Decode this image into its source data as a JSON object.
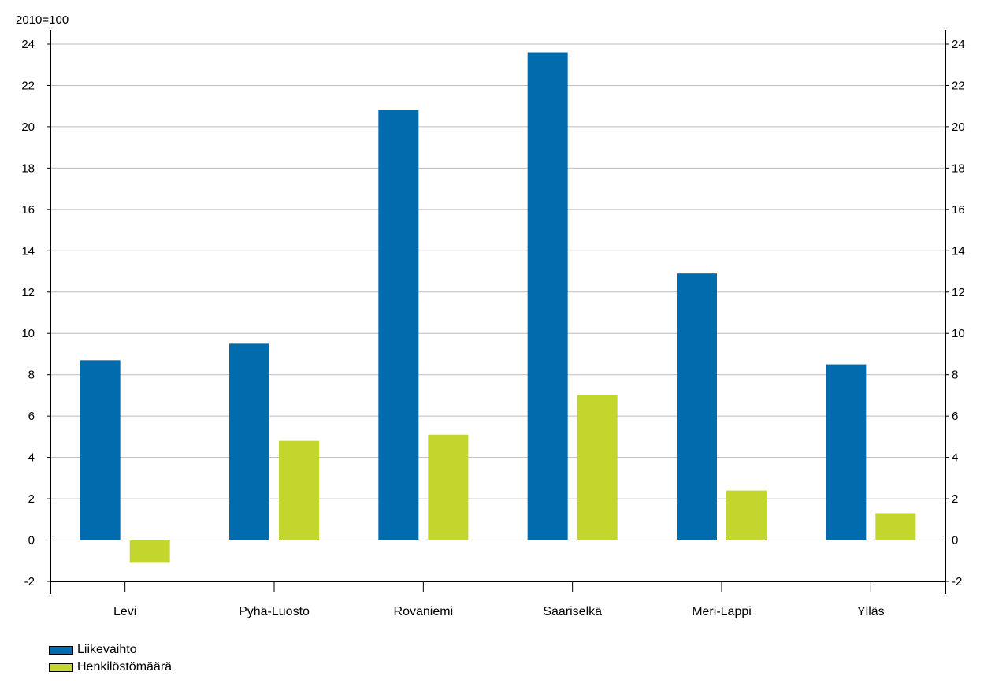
{
  "chart_data": {
    "type": "bar",
    "unit_label": "2010=100",
    "categories": [
      "Levi",
      "Pyhä-Luosto",
      "Rovaniemi",
      "Saariselkä",
      "Meri-Lappi",
      "Ylläs"
    ],
    "series": [
      {
        "name": "Liikevaihto",
        "color": "#006bad",
        "values": [
          8.7,
          9.5,
          20.8,
          23.6,
          12.9,
          8.5
        ]
      },
      {
        "name": "Henkilöstömäärä",
        "color": "#c2d62e",
        "values": [
          -1.1,
          4.8,
          5.1,
          7.0,
          2.4,
          1.3
        ]
      }
    ],
    "ylim": [
      -2,
      24
    ],
    "yticks": [
      "-2",
      "0",
      "2",
      "4",
      "6",
      "8",
      "10",
      "12",
      "14",
      "16",
      "18",
      "20",
      "22",
      "24"
    ],
    "grid": true,
    "legend_position": "bottom-left",
    "secondary_y_axis": true
  }
}
